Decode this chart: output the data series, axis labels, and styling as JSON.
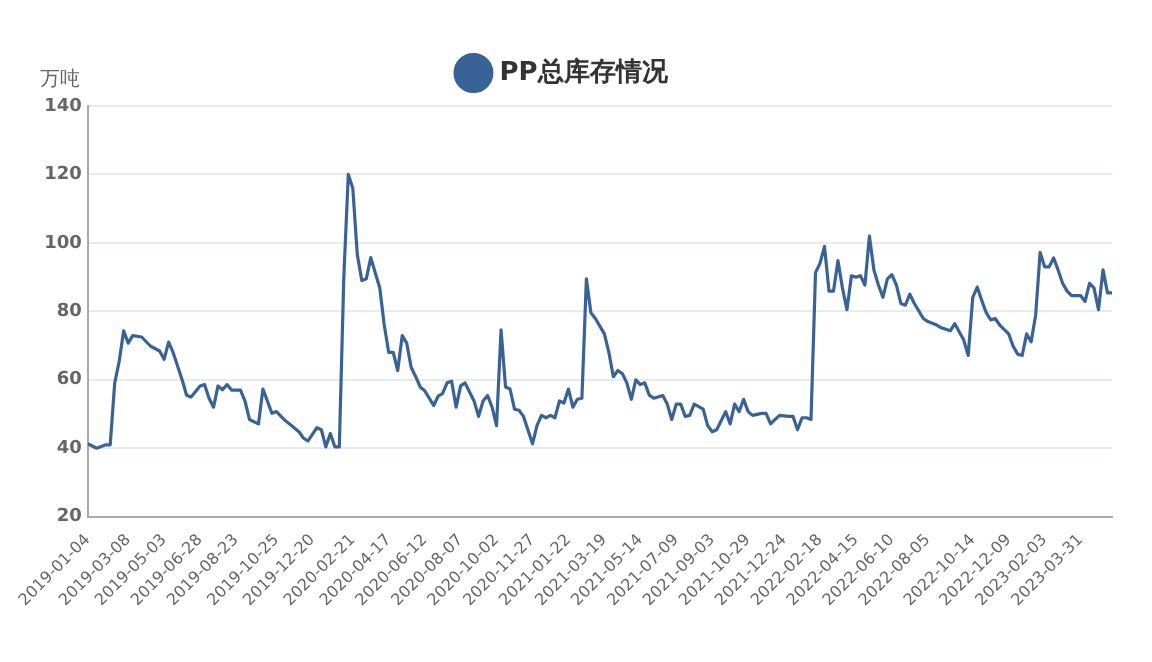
{
  "chart_data": {
    "type": "line",
    "ylabel": "万吨",
    "legend": "top",
    "grid": "y",
    "marker": "none",
    "line_style": "solid",
    "xlim": [
      "2019-01-04",
      "2023-05-19"
    ],
    "xticks": [
      "2019-01-04",
      "2019-03-08",
      "2019-05-03",
      "2019-06-28",
      "2019-08-23",
      "2019-10-25",
      "2019-12-20",
      "2020-02-21",
      "2020-04-17",
      "2020-06-12",
      "2020-08-07",
      "2020-10-02",
      "2020-11-27",
      "2021-01-22",
      "2021-03-19",
      "2021-05-14",
      "2021-07-09",
      "2021-09-03",
      "2021-10-29",
      "2021-12-24",
      "2022-02-18",
      "2022-04-15",
      "2022-06-10",
      "2022-08-05",
      "2022-10-14",
      "2022-12-09",
      "2023-02-03",
      "2023-03-31"
    ],
    "ylim": [
      20,
      140
    ],
    "yticks": [
      20,
      40,
      60,
      80,
      100,
      120,
      140
    ],
    "series": [
      {
        "name": "PP总库存情况",
        "color": "#3a6395",
        "x": [
          "2019-01-04",
          "2019-01-18",
          "2019-02-01",
          "2019-02-08",
          "2019-02-15",
          "2019-02-22",
          "2019-03-01",
          "2019-03-08",
          "2019-03-15",
          "2019-03-29",
          "2019-04-12",
          "2019-04-26",
          "2019-05-03",
          "2019-05-10",
          "2019-05-17",
          "2019-05-31",
          "2019-06-07",
          "2019-06-14",
          "2019-06-28",
          "2019-07-05",
          "2019-07-12",
          "2019-07-19",
          "2019-07-26",
          "2019-08-02",
          "2019-08-09",
          "2019-08-16",
          "2019-08-30",
          "2019-09-06",
          "2019-09-13",
          "2019-09-27",
          "2019-10-04",
          "2019-10-18",
          "2019-10-25",
          "2019-11-08",
          "2019-11-15",
          "2019-11-29",
          "2019-12-06",
          "2019-12-13",
          "2019-12-27",
          "2020-01-03",
          "2020-01-10",
          "2020-01-17",
          "2020-01-24",
          "2020-01-31",
          "2020-02-07",
          "2020-02-14",
          "2020-02-21",
          "2020-02-28",
          "2020-03-06",
          "2020-03-13",
          "2020-03-20",
          "2020-04-03",
          "2020-04-10",
          "2020-04-17",
          "2020-04-24",
          "2020-05-01",
          "2020-05-08",
          "2020-05-15",
          "2020-05-22",
          "2020-05-29",
          "2020-06-05",
          "2020-06-12",
          "2020-06-26",
          "2020-07-03",
          "2020-07-10",
          "2020-07-17",
          "2020-07-24",
          "2020-07-31",
          "2020-08-07",
          "2020-08-14",
          "2020-08-21",
          "2020-08-28",
          "2020-09-04",
          "2020-09-11",
          "2020-09-18",
          "2020-09-25",
          "2020-10-02",
          "2020-10-09",
          "2020-10-16",
          "2020-10-23",
          "2020-10-30",
          "2020-11-06",
          "2020-11-13",
          "2020-11-27",
          "2020-12-04",
          "2020-12-11",
          "2020-12-18",
          "2020-12-25",
          "2021-01-01",
          "2021-01-08",
          "2021-01-15",
          "2021-01-22",
          "2021-01-29",
          "2021-02-05",
          "2021-02-12",
          "2021-02-19",
          "2021-02-26",
          "2021-03-05",
          "2021-03-19",
          "2021-03-26",
          "2021-04-02",
          "2021-04-09",
          "2021-04-16",
          "2021-04-23",
          "2021-04-30",
          "2021-05-07",
          "2021-05-14",
          "2021-05-21",
          "2021-05-28",
          "2021-06-04",
          "2021-06-18",
          "2021-06-25",
          "2021-07-02",
          "2021-07-09",
          "2021-07-16",
          "2021-07-23",
          "2021-07-30",
          "2021-08-06",
          "2021-08-20",
          "2021-08-27",
          "2021-09-03",
          "2021-09-10",
          "2021-09-24",
          "2021-10-01",
          "2021-10-08",
          "2021-10-15",
          "2021-10-22",
          "2021-10-29",
          "2021-11-05",
          "2021-11-19",
          "2021-11-26",
          "2021-12-03",
          "2021-12-10",
          "2021-12-17",
          "2021-12-31",
          "2022-01-07",
          "2022-01-14",
          "2022-01-21",
          "2022-01-28",
          "2022-02-04",
          "2022-02-11",
          "2022-02-18",
          "2022-02-25",
          "2022-03-04",
          "2022-03-11",
          "2022-03-18",
          "2022-03-25",
          "2022-04-01",
          "2022-04-08",
          "2022-04-15",
          "2022-04-22",
          "2022-04-29",
          "2022-05-06",
          "2022-05-13",
          "2022-05-20",
          "2022-05-27",
          "2022-06-03",
          "2022-06-10",
          "2022-06-17",
          "2022-06-24",
          "2022-07-01",
          "2022-07-08",
          "2022-07-15",
          "2022-07-29",
          "2022-08-05",
          "2022-08-19",
          "2022-08-26",
          "2022-09-09",
          "2022-09-16",
          "2022-09-30",
          "2022-10-07",
          "2022-10-14",
          "2022-10-21",
          "2022-10-28",
          "2022-11-04",
          "2022-11-11",
          "2022-11-18",
          "2022-11-25",
          "2022-12-09",
          "2022-12-16",
          "2022-12-23",
          "2022-12-30",
          "2023-01-06",
          "2023-01-13",
          "2023-01-20",
          "2023-01-27",
          "2023-02-03",
          "2023-02-10",
          "2023-02-17",
          "2023-02-24",
          "2023-03-03",
          "2023-03-10",
          "2023-03-17",
          "2023-03-31",
          "2023-04-07",
          "2023-04-14",
          "2023-04-21",
          "2023-04-28",
          "2023-05-05",
          "2023-05-12",
          "2023-05-19"
        ],
        "values": [
          41.3,
          40,
          41,
          41,
          59,
          65.4,
          74.3,
          70.7,
          72.9,
          72.5,
          69.8,
          68.4,
          66,
          71,
          68,
          60,
          55.5,
          55,
          58.2,
          58.6,
          54.6,
          52,
          58.2,
          57.1,
          58.6,
          57,
          57,
          53.8,
          48.4,
          47.1,
          57.3,
          50.2,
          50.7,
          48,
          47,
          44.8,
          43,
          42.1,
          46,
          45.4,
          40.4,
          44.3,
          40.4,
          40.4,
          90,
          120,
          116,
          96.6,
          89,
          89.5,
          95.7,
          86.8,
          76,
          68,
          68,
          62.7,
          72.9,
          70.7,
          63.6,
          60.9,
          57.9,
          56.8,
          52.5,
          55.2,
          56,
          59.1,
          59.6,
          52,
          58.2,
          59.1,
          56.4,
          53.8,
          49.3,
          53.8,
          55.4,
          52,
          46.6,
          74.6,
          57.9,
          57.3,
          51.4,
          51.1,
          49.3,
          41.3,
          46.6,
          49.6,
          48.9,
          49.6,
          48.9,
          53.8,
          53.2,
          57.3,
          52,
          54.3,
          54.6,
          89.5,
          79.6,
          77.9,
          73.4,
          68,
          60.9,
          62.7,
          61.8,
          59.1,
          54.3,
          60,
          58.6,
          59.1,
          55.5,
          54.6,
          55.4,
          52.9,
          48.4,
          52.9,
          52.9,
          49.3,
          49.6,
          52.9,
          51.4,
          46.6,
          44.8,
          45.4,
          50.7,
          47.1,
          52.9,
          50.7,
          54.3,
          50.7,
          49.6,
          50.2,
          50.2,
          47.1,
          48.4,
          49.6,
          49.3,
          49.3,
          45.4,
          48.9,
          48.9,
          48.4,
          91.3,
          94,
          99,
          85.9,
          85.9,
          94.8,
          86.8,
          80.5,
          90.4,
          90,
          90.4,
          87.7,
          102,
          92.1,
          87.7,
          84.1,
          89.5,
          90.7,
          87.7,
          82.3,
          81.8,
          85,
          82.3,
          77.9,
          77,
          76,
          75.2,
          74.3,
          76.4,
          71.6,
          67.1,
          84.1,
          87.1,
          83.2,
          79.6,
          77.5,
          77.9,
          76,
          73.4,
          69.8,
          67.5,
          67.1,
          73.4,
          71.1,
          78.8,
          97.2,
          93,
          93,
          95.6,
          92.1,
          88.2,
          85.9,
          84.6,
          84.6,
          82.9,
          88.2,
          86.8,
          80.5,
          92.1,
          85.4,
          85.4
        ]
      }
    ]
  }
}
